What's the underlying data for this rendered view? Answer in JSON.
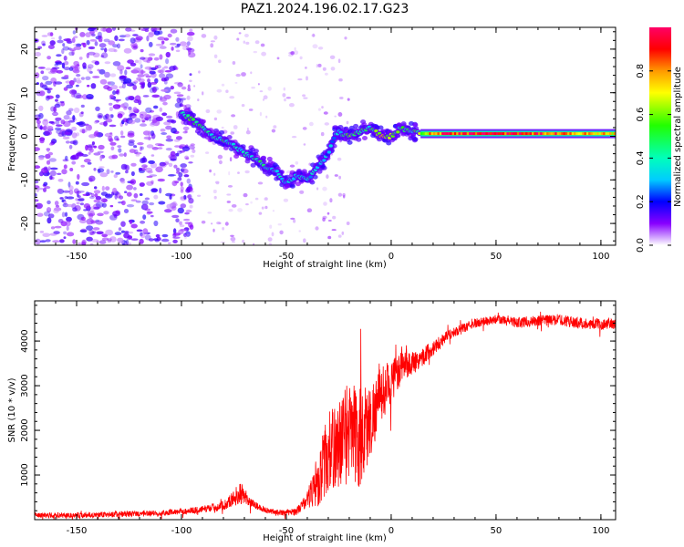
{
  "title": "PAZ1.2024.196.02.17.G23",
  "chart_data": [
    {
      "type": "heatmap",
      "xlabel": "Height of straight line (km)",
      "ylabel": "Frequency (Hz)",
      "xlim": [
        -170,
        107
      ],
      "ylim": [
        -25,
        25
      ],
      "xticks": [
        "-150",
        "-100",
        "-50",
        "0",
        "50",
        "100"
      ],
      "yticks": [
        "-20",
        "-10",
        "0",
        "10",
        "20"
      ],
      "colorbar": {
        "label": "Normalized spectral amplitude",
        "ticks": [
          "0.0",
          "0.2",
          "0.4",
          "0.6",
          "0.8"
        ],
        "range": [
          0,
          1
        ],
        "colormap": "gist_rainbow_r"
      },
      "ridge": {
        "x": [
          -100,
          -95,
          -90,
          -85,
          -80,
          -75,
          -70,
          -65,
          -60,
          -55,
          -50,
          -45,
          -40,
          -35,
          -30,
          -27,
          -25,
          -20,
          -15,
          -10,
          -5,
          0,
          5,
          10,
          20,
          40,
          60,
          80,
          100,
          107
        ],
        "y": [
          5,
          4,
          2,
          0,
          -1,
          -2,
          -4,
          -5,
          -7,
          -8,
          -11,
          -9,
          -10,
          -7,
          -4,
          0,
          1,
          0,
          1,
          2,
          0,
          0,
          2,
          1,
          0.6,
          0.6,
          0.6,
          0.6,
          0.6,
          0.6
        ],
        "amplitude": [
          0.45,
          0.5,
          0.45,
          0.4,
          0.45,
          0.4,
          0.4,
          0.45,
          0.4,
          0.35,
          0.35,
          0.35,
          0.4,
          0.3,
          0.3,
          0.3,
          0.35,
          0.6,
          0.5,
          0.35,
          0.8,
          0.6,
          0.55,
          0.4,
          0.85,
          0.95,
          0.9,
          0.85,
          0.75,
          0.7
        ]
      },
      "noise_region": {
        "x": [
          -170,
          -100
        ],
        "y": [
          -25,
          25
        ],
        "level": "low (0.1-0.3)"
      }
    },
    {
      "type": "line",
      "xlabel": "Height of straight line (km)",
      "ylabel": "SNR (10 * v/v)",
      "xlim": [
        -170,
        107
      ],
      "ylim": [
        0,
        4900
      ],
      "xticks": [
        "-150",
        "-100",
        "-50",
        "0",
        "50",
        "100"
      ],
      "yticks": [
        "1000",
        "2000",
        "3000",
        "4000"
      ],
      "color": "#ff0000",
      "series": [
        {
          "x": [
            -170,
            -150,
            -130,
            -110,
            -100,
            -90,
            -80,
            -75,
            -72,
            -70,
            -65,
            -60,
            -55,
            -50,
            -45,
            -40,
            -35,
            -30,
            -25,
            -20,
            -15,
            -10,
            -5,
            0,
            5,
            10,
            15,
            20,
            25,
            30,
            35,
            40,
            50,
            60,
            70,
            80,
            90,
            100,
            107
          ],
          "y": [
            100,
            100,
            120,
            150,
            180,
            230,
            320,
            480,
            620,
            480,
            320,
            220,
            170,
            150,
            190,
            450,
            900,
            1500,
            1700,
            2000,
            1800,
            2200,
            2800,
            3100,
            3400,
            3500,
            3650,
            3850,
            4050,
            4200,
            4300,
            4400,
            4480,
            4420,
            4450,
            4480,
            4400,
            4380,
            4380
          ],
          "noise": [
            80,
            90,
            90,
            90,
            90,
            110,
            150,
            250,
            400,
            250,
            120,
            90,
            90,
            90,
            120,
            250,
            900,
            1300,
            1400,
            1700,
            1800,
            1200,
            900,
            700,
            500,
            400,
            300,
            250,
            200,
            150,
            150,
            150,
            150,
            170,
            170,
            180,
            180,
            170,
            170
          ]
        }
      ]
    }
  ]
}
